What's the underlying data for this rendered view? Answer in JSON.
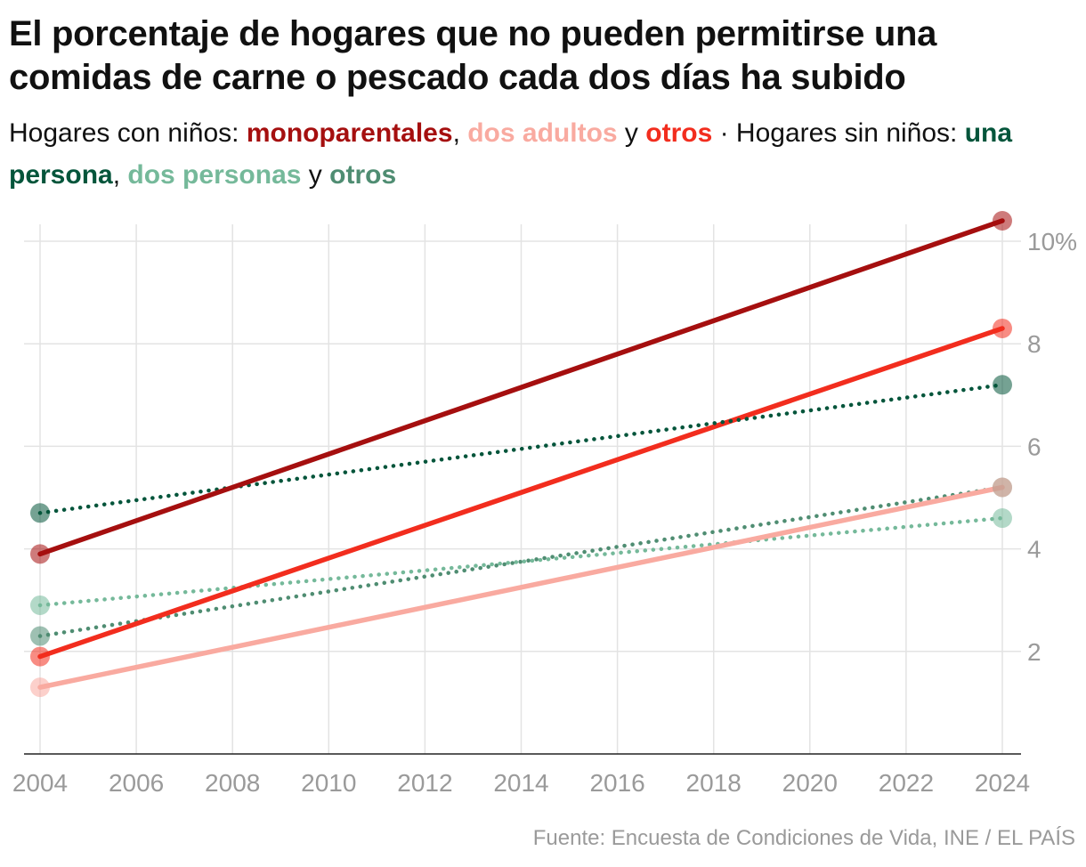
{
  "title": "El porcentaje de hogares que no pueden permitirse una comidas de carne o pescado cada dos días ha subido",
  "subtitle": {
    "group1_prefix": "Hogares con niños: ",
    "s1": "monoparentales",
    "sep1": ", ",
    "s2": "dos adultos",
    "sep2": " y ",
    "s3": "otros",
    "sep3": " · Hogares sin niños: ",
    "s4": "una persona",
    "sep4": ", ",
    "s5": "dos personas",
    "sep5": " y ",
    "s6": "otros"
  },
  "source": "Fuente: Encuesta de Condiciones de Vida, INE / EL PAÍS",
  "chart_data": {
    "type": "line",
    "title": "El porcentaje de hogares que no pueden permitirse una comidas de carne o pescado cada dos días ha subido",
    "xlabel": "",
    "ylabel": "",
    "xlim": [
      2004,
      2024
    ],
    "ylim": [
      0,
      10.4
    ],
    "x_ticks": [
      "2004",
      "2006",
      "2008",
      "2010",
      "2012",
      "2014",
      "2016",
      "2018",
      "2020",
      "2022",
      "2024"
    ],
    "y_ticks": [
      {
        "value": 2,
        "label": "2"
      },
      {
        "value": 4,
        "label": "4"
      },
      {
        "value": 6,
        "label": "6"
      },
      {
        "value": 8,
        "label": "8"
      },
      {
        "value": 10,
        "label": "10%"
      }
    ],
    "y_axis_position": "right",
    "grid": true,
    "legend": "subtitle",
    "x": [
      2004,
      2024
    ],
    "series": [
      {
        "name": "monoparentales",
        "group": "Hogares con niños",
        "values": [
          3.9,
          10.4
        ],
        "color": "#a50f0f",
        "style": "solid"
      },
      {
        "name": "dos adultos",
        "group": "Hogares con niños",
        "values": [
          1.3,
          5.2
        ],
        "color": "#f9aaa0",
        "style": "solid"
      },
      {
        "name": "otros",
        "group": "Hogares con niños",
        "values": [
          1.9,
          8.3
        ],
        "color": "#f22d1e",
        "style": "solid"
      },
      {
        "name": "una persona",
        "group": "Hogares sin niños",
        "values": [
          4.7,
          7.2
        ],
        "color": "#04553b",
        "style": "dotted"
      },
      {
        "name": "dos personas",
        "group": "Hogares sin niños",
        "values": [
          2.9,
          4.6
        ],
        "color": "#75b99a",
        "style": "dotted"
      },
      {
        "name": "otros",
        "group": "Hogares sin niños",
        "values": [
          2.3,
          5.2
        ],
        "color": "#4f8d72",
        "style": "dotted"
      }
    ]
  }
}
